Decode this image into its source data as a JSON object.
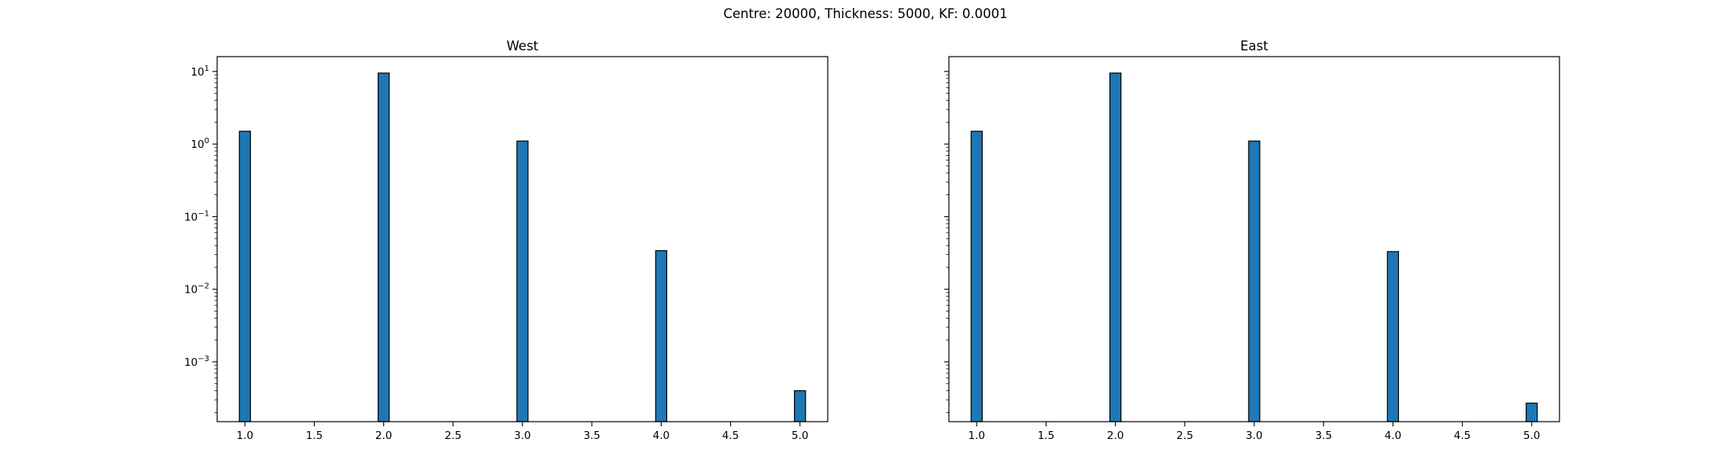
{
  "figure": {
    "suptitle": "Centre: 20000, Thickness: 5000, KF: 0.0001"
  },
  "chart_data": [
    {
      "type": "bar",
      "title": "West",
      "xlabel": "",
      "ylabel": "",
      "x": [
        1,
        2,
        3,
        4,
        5
      ],
      "values": [
        1.5,
        9.5,
        1.1,
        0.034,
        0.0004
      ],
      "bar_width": 0.08,
      "xlim": [
        0.8,
        5.2
      ],
      "ylim": [
        0.00015,
        16
      ],
      "yscale": "log",
      "xticks": [
        "1.0",
        "1.5",
        "2.0",
        "2.5",
        "3.0",
        "3.5",
        "4.0",
        "4.5",
        "5.0"
      ],
      "yticks": [
        {
          "base": "10",
          "exp": "1"
        },
        {
          "base": "10",
          "exp": "0"
        },
        {
          "base": "10",
          "exp": "−1"
        },
        {
          "base": "10",
          "exp": "−2"
        },
        {
          "base": "10",
          "exp": "−3"
        }
      ],
      "show_ytick_labels": true,
      "bar_color": "#1f77b4",
      "edge_color": "#000000",
      "grid": false
    },
    {
      "type": "bar",
      "title": "East",
      "xlabel": "",
      "ylabel": "",
      "x": [
        1,
        2,
        3,
        4,
        5
      ],
      "values": [
        1.5,
        9.5,
        1.1,
        0.033,
        0.00027
      ],
      "bar_width": 0.08,
      "xlim": [
        0.8,
        5.2
      ],
      "ylim": [
        0.00015,
        16
      ],
      "yscale": "log",
      "xticks": [
        "1.0",
        "1.5",
        "2.0",
        "2.5",
        "3.0",
        "3.5",
        "4.0",
        "4.5",
        "5.0"
      ],
      "yticks": [],
      "show_ytick_labels": false,
      "bar_color": "#1f77b4",
      "edge_color": "#000000",
      "grid": false
    }
  ]
}
